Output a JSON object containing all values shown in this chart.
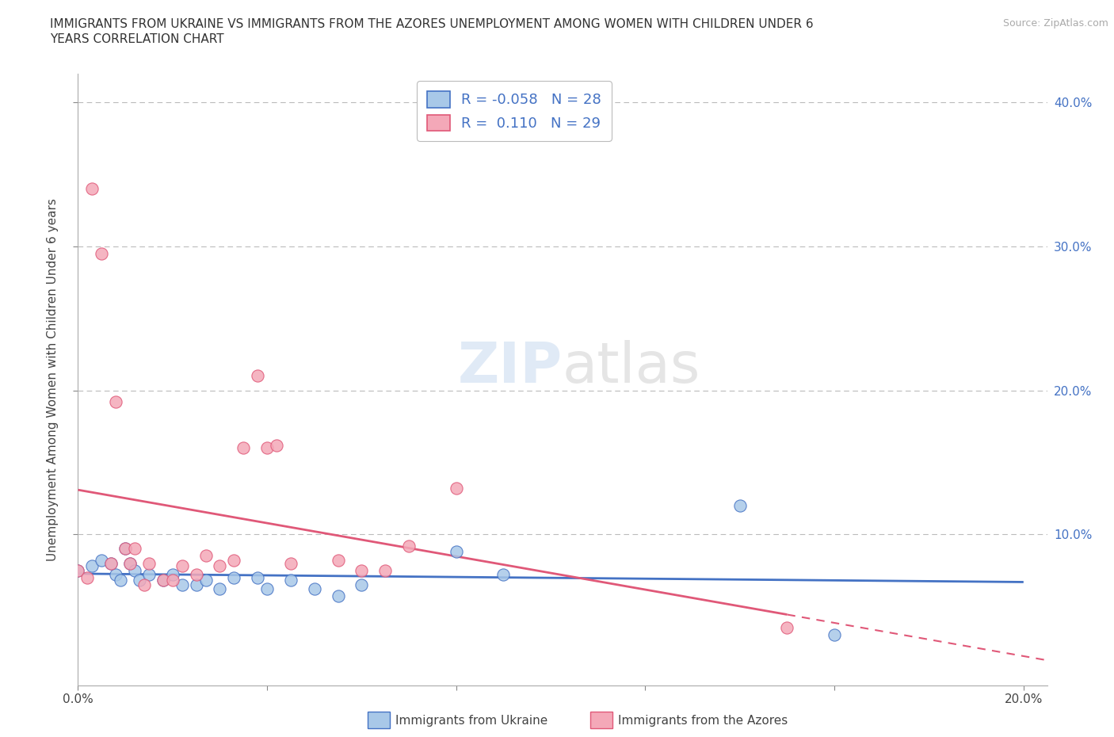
{
  "title_line1": "IMMIGRANTS FROM UKRAINE VS IMMIGRANTS FROM THE AZORES UNEMPLOYMENT AMONG WOMEN WITH CHILDREN UNDER 6",
  "title_line2": "YEARS CORRELATION CHART",
  "source": "Source: ZipAtlas.com",
  "ylabel": "Unemployment Among Women with Children Under 6 years",
  "legend_ukraine": "Immigrants from Ukraine",
  "legend_azores": "Immigrants from the Azores",
  "R_ukraine": -0.058,
  "N_ukraine": 28,
  "R_azores": 0.11,
  "N_azores": 29,
  "color_ukraine": "#a8c8e8",
  "color_azores": "#f4a8b8",
  "line_ukraine": "#4472c4",
  "line_azores": "#e05878",
  "grid_color": "#bbbbbb",
  "xlim": [
    0.0,
    0.205
  ],
  "ylim": [
    -0.005,
    0.42
  ],
  "ukraine_x": [
    0.0,
    0.003,
    0.005,
    0.007,
    0.008,
    0.009,
    0.01,
    0.011,
    0.012,
    0.013,
    0.015,
    0.018,
    0.02,
    0.022,
    0.025,
    0.027,
    0.03,
    0.033,
    0.038,
    0.04,
    0.045,
    0.05,
    0.055,
    0.06,
    0.08,
    0.09,
    0.14,
    0.16
  ],
  "ukraine_y": [
    0.075,
    0.078,
    0.082,
    0.08,
    0.072,
    0.068,
    0.09,
    0.08,
    0.075,
    0.068,
    0.072,
    0.068,
    0.072,
    0.065,
    0.065,
    0.068,
    0.062,
    0.07,
    0.07,
    0.062,
    0.068,
    0.062,
    0.057,
    0.065,
    0.088,
    0.072,
    0.12,
    0.03
  ],
  "azores_x": [
    0.0,
    0.002,
    0.003,
    0.005,
    0.007,
    0.008,
    0.01,
    0.011,
    0.012,
    0.014,
    0.015,
    0.018,
    0.02,
    0.022,
    0.025,
    0.027,
    0.03,
    0.033,
    0.035,
    0.038,
    0.04,
    0.042,
    0.045,
    0.055,
    0.06,
    0.065,
    0.07,
    0.08,
    0.15
  ],
  "azores_y": [
    0.075,
    0.07,
    0.34,
    0.295,
    0.08,
    0.192,
    0.09,
    0.08,
    0.09,
    0.065,
    0.08,
    0.068,
    0.068,
    0.078,
    0.072,
    0.085,
    0.078,
    0.082,
    0.16,
    0.21,
    0.16,
    0.162,
    0.08,
    0.082,
    0.075,
    0.075,
    0.092,
    0.132,
    0.035
  ]
}
